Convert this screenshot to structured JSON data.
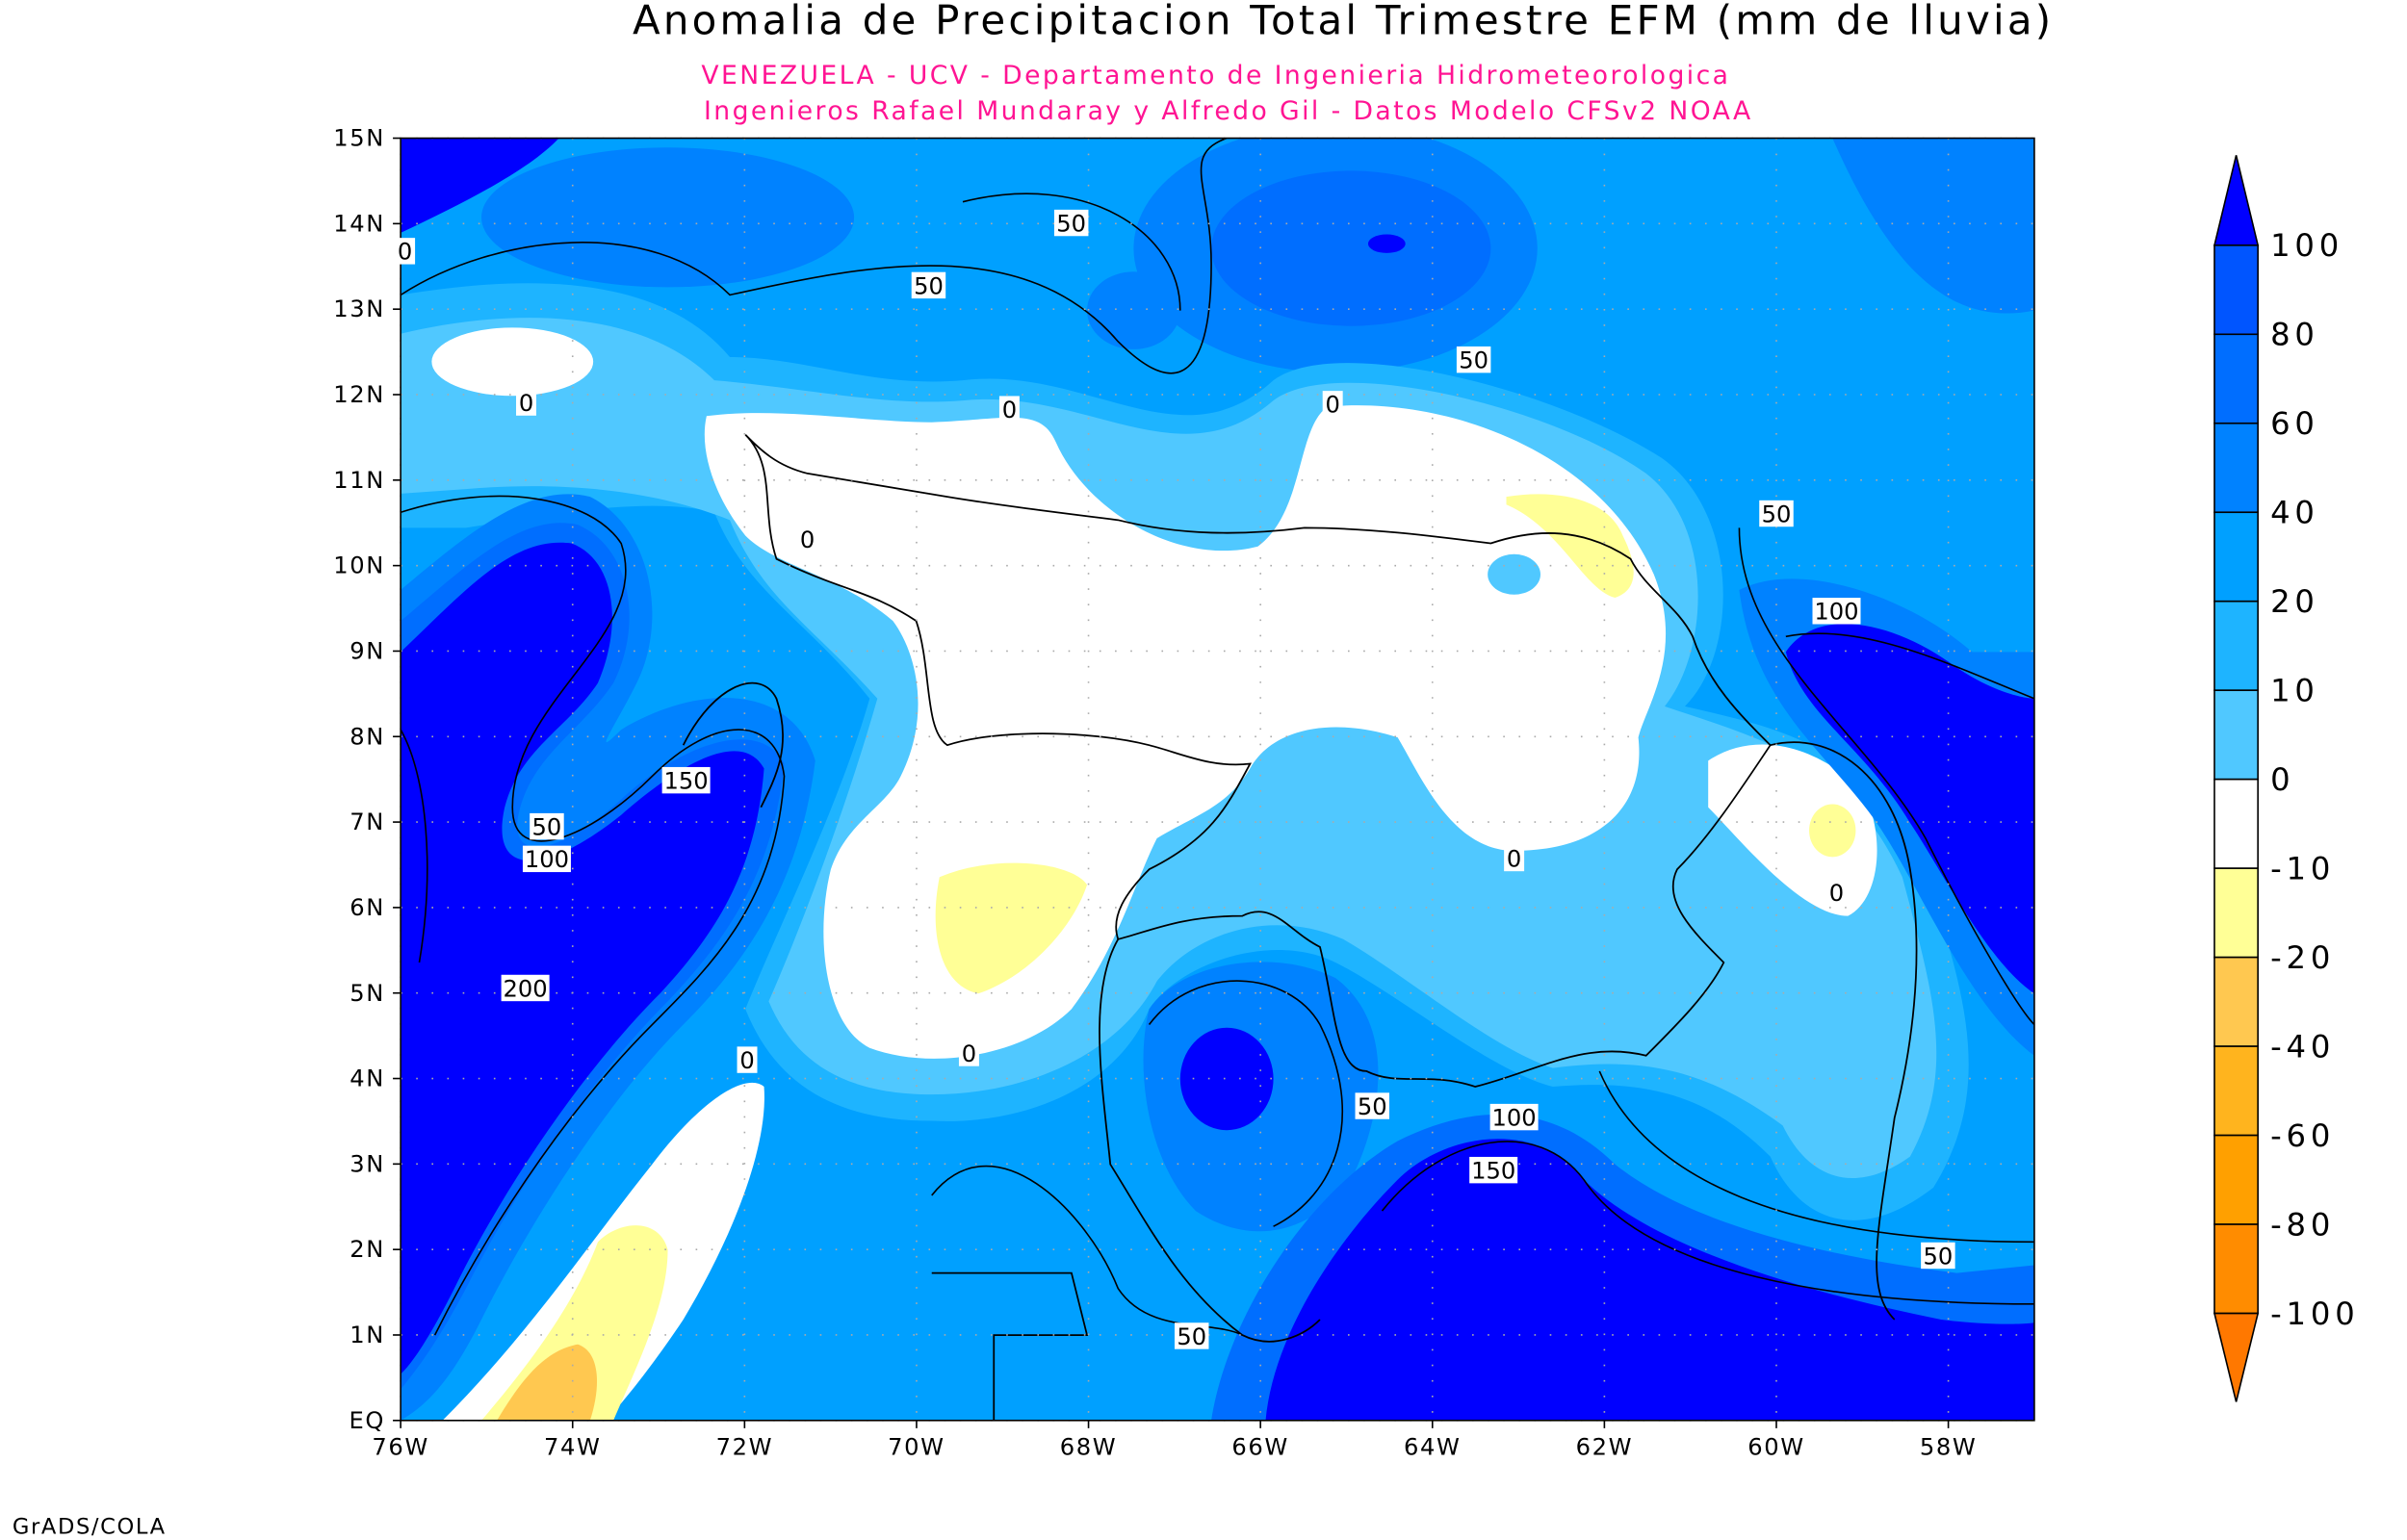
{
  "chart_data": {
    "type": "heatmap",
    "title": "Anomalia de Precipitacion Total Trimestre EFM (mm de lluvia)",
    "subtitle_lines": [
      "VENEZUELA - UCV - Departamento de Ingenieria Hidrometeorologica",
      "Ingenieros Rafael Mundaray y Alfredo Gil - Datos Modelo CFSv2 NOAA"
    ],
    "xlim": [
      -76,
      -57
    ],
    "ylim": [
      0,
      15
    ],
    "x_ticks": [
      {
        "value": -76,
        "label": "76W"
      },
      {
        "value": -74,
        "label": "74W"
      },
      {
        "value": -72,
        "label": "72W"
      },
      {
        "value": -70,
        "label": "70W"
      },
      {
        "value": -68,
        "label": "68W"
      },
      {
        "value": -66,
        "label": "66W"
      },
      {
        "value": -64,
        "label": "64W"
      },
      {
        "value": -62,
        "label": "62W"
      },
      {
        "value": -60,
        "label": "60W"
      },
      {
        "value": -58,
        "label": "58W"
      }
    ],
    "y_ticks": [
      {
        "value": 0,
        "label": "EQ"
      },
      {
        "value": 1,
        "label": "1N"
      },
      {
        "value": 2,
        "label": "2N"
      },
      {
        "value": 3,
        "label": "3N"
      },
      {
        "value": 4,
        "label": "4N"
      },
      {
        "value": 5,
        "label": "5N"
      },
      {
        "value": 6,
        "label": "6N"
      },
      {
        "value": 7,
        "label": "7N"
      },
      {
        "value": 8,
        "label": "8N"
      },
      {
        "value": 9,
        "label": "9N"
      },
      {
        "value": 10,
        "label": "10N"
      },
      {
        "value": 11,
        "label": "11N"
      },
      {
        "value": 12,
        "label": "12N"
      },
      {
        "value": 13,
        "label": "13N"
      },
      {
        "value": 14,
        "label": "14N"
      },
      {
        "value": 15,
        "label": "15N"
      }
    ],
    "grid": true,
    "colorbar": {
      "placement": "right",
      "labels": [
        "100",
        "80",
        "60",
        "40",
        "20",
        "10",
        "0",
        "-10",
        "-20",
        "-40",
        "-60",
        "-80",
        "-100"
      ],
      "colors": [
        "#0000ff",
        "#0055ff",
        "#006eff",
        "#0082ff",
        "#00a0ff",
        "#1eb4ff",
        "#50c8ff",
        "#ffffff",
        "#ffff96",
        "#ffc850",
        "#ffb41e",
        "#ffa000",
        "#ff8c00",
        "#ff7800"
      ]
    },
    "contour_labels": [
      {
        "text": "0",
        "lon": -75.95,
        "lat": 13.67
      },
      {
        "text": "50",
        "lon": -68.2,
        "lat": 14.0
      },
      {
        "text": "50",
        "lon": -69.86,
        "lat": 13.27
      },
      {
        "text": "50",
        "lon": -63.52,
        "lat": 12.4
      },
      {
        "text": "0",
        "lon": -74.54,
        "lat": 11.9
      },
      {
        "text": "0",
        "lon": -68.92,
        "lat": 11.82
      },
      {
        "text": "0",
        "lon": -65.16,
        "lat": 11.88
      },
      {
        "text": "50",
        "lon": -60.0,
        "lat": 10.6
      },
      {
        "text": "0",
        "lon": -71.27,
        "lat": 10.3
      },
      {
        "text": "100",
        "lon": -59.3,
        "lat": 9.46
      },
      {
        "text": "150",
        "lon": -72.68,
        "lat": 7.48
      },
      {
        "text": "50",
        "lon": -74.3,
        "lat": 6.94
      },
      {
        "text": "100",
        "lon": -74.3,
        "lat": 6.56
      },
      {
        "text": "0",
        "lon": -63.05,
        "lat": 6.57
      },
      {
        "text": "0",
        "lon": -59.3,
        "lat": 6.17
      },
      {
        "text": "200",
        "lon": -74.55,
        "lat": 5.05
      },
      {
        "text": "0",
        "lon": -71.97,
        "lat": 4.21
      },
      {
        "text": "0",
        "lon": -69.39,
        "lat": 4.29
      },
      {
        "text": "50",
        "lon": -64.7,
        "lat": 3.67
      },
      {
        "text": "100",
        "lon": -63.05,
        "lat": 3.54
      },
      {
        "text": "150",
        "lon": -63.29,
        "lat": 2.92
      },
      {
        "text": "50",
        "lon": -58.12,
        "lat": 1.92
      },
      {
        "text": "50",
        "lon": -66.8,
        "lat": 0.98
      }
    ]
  },
  "footer": "GrADS/COLA"
}
